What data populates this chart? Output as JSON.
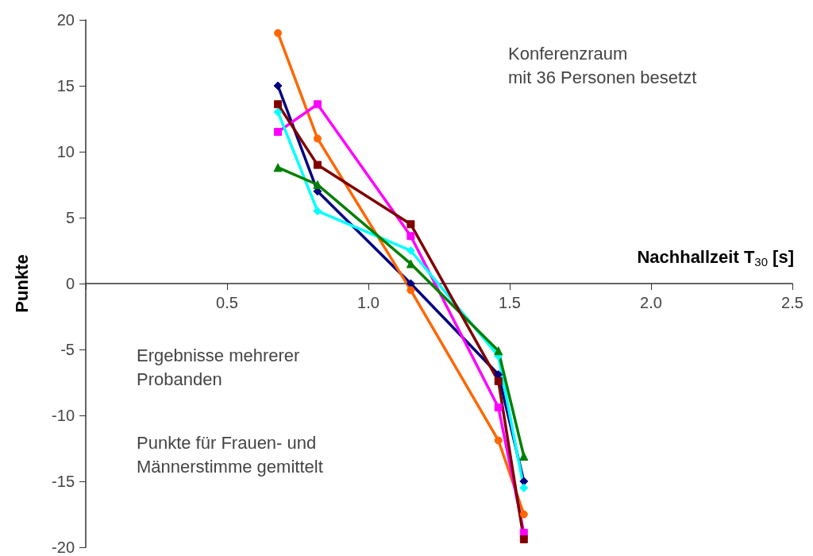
{
  "chart_data": {
    "type": "line",
    "xlabel": "Nachhallzeit T$_{30}$ [s]",
    "ylabel": "Punkte",
    "annotations": [
      "Konferenzraum\nmit 36 Personen besetzt",
      "Ergebnisse mehrerer\nProbanden",
      "Punkte für Frauen- und\nMännerstimme gemittelt"
    ],
    "x": [
      0.68,
      0.82,
      1.15,
      1.46,
      1.55
    ],
    "xlim": [
      0,
      2.5
    ],
    "xticks": [
      {
        "value": 0,
        "label": null
      },
      0.5,
      {
        "value": 1,
        "label": "1.0"
      },
      1.5,
      {
        "value": 2,
        "label": "2.0"
      },
      2.5
    ],
    "ylim": [
      -20,
      20
    ],
    "yticks": [
      -20,
      -15,
      -10,
      -5,
      0,
      5,
      10,
      15,
      20
    ],
    "grid": false,
    "line_style": "solid",
    "series": [
      {
        "color": "#000080",
        "marker": "diamond",
        "values": [
          15,
          7,
          0,
          -6.9,
          -15
        ]
      },
      {
        "color": "#ff6600",
        "marker": "circle",
        "values": [
          19,
          11,
          -0.5,
          -11.9,
          -17.5
        ]
      },
      {
        "color": "#ff00ff",
        "marker": "square",
        "values": [
          11.5,
          13.6,
          3.6,
          -9.4,
          -18.9
        ]
      },
      {
        "color": "#00ffff",
        "marker": "diamond",
        "values": [
          13,
          5.5,
          2.5,
          -5.5,
          -15.5
        ]
      },
      {
        "color": "#008000",
        "marker": "triangle",
        "values": [
          8.8,
          7.5,
          1.5,
          -5.1,
          -13.1
        ]
      },
      {
        "color": "#800000",
        "marker": "square",
        "values": [
          13.6,
          9,
          4.5,
          -7.4,
          -19.4
        ]
      }
    ]
  }
}
